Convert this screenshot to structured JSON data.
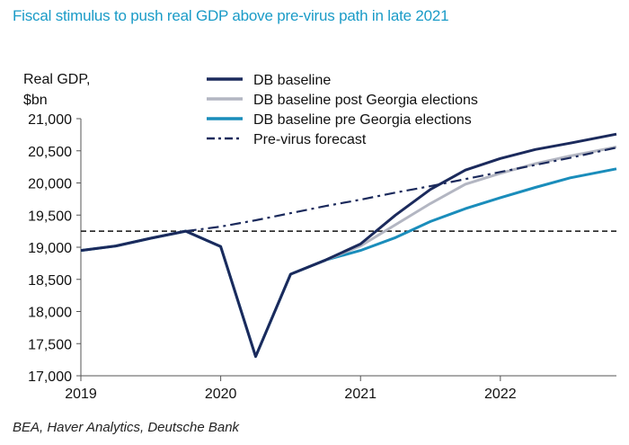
{
  "title": "Fiscal stimulus to push real GDP above pre-virus path in late 2021",
  "source": "BEA, Haver Analytics, Deutsche Bank",
  "chart_data": {
    "type": "line",
    "ylabel_line1": "Real GDP,",
    "ylabel_line2": "$bn",
    "xlim": [
      2019.0,
      2022.83
    ],
    "ylim": [
      17000,
      21000
    ],
    "x_ticks": [
      2019,
      2020,
      2021,
      2022
    ],
    "x_tick_labels": [
      "2019",
      "2020",
      "2021",
      "2022"
    ],
    "y_ticks": [
      17000,
      17500,
      18000,
      18500,
      19000,
      19500,
      20000,
      20500,
      21000
    ],
    "y_tick_labels": [
      "17,000",
      "17,500",
      "18,000",
      "18,500",
      "19,000",
      "19,500",
      "20,000",
      "20,500",
      "21,000"
    ],
    "hline": {
      "y": 19250
    },
    "series": [
      {
        "name": "DB baseline",
        "color": "#1b2a5c",
        "dash": "solid",
        "x": [
          2019.0,
          2019.25,
          2019.5,
          2019.75,
          2020.0,
          2020.25,
          2020.5,
          2020.75,
          2021.0,
          2021.25,
          2021.5,
          2021.75,
          2022.0,
          2022.25,
          2022.5,
          2022.83
        ],
        "y": [
          18950,
          19020,
          19140,
          19250,
          19010,
          17300,
          18580,
          18800,
          19050,
          19500,
          19900,
          20200,
          20380,
          20520,
          20620,
          20760
        ]
      },
      {
        "name": "DB baseline post Georgia elections",
        "color": "#b3b6c2",
        "dash": "solid",
        "x": [
          2020.75,
          2021.0,
          2021.25,
          2021.5,
          2021.75,
          2022.0,
          2022.25,
          2022.5,
          2022.83
        ],
        "y": [
          18800,
          19020,
          19350,
          19680,
          19980,
          20150,
          20300,
          20420,
          20560
        ]
      },
      {
        "name": "DB baseline pre Georgia elections",
        "color": "#1a8dbb",
        "dash": "solid",
        "x": [
          2019.0,
          2019.25,
          2019.5,
          2019.75,
          2020.0,
          2020.25,
          2020.5,
          2020.75,
          2021.0,
          2021.25,
          2021.5,
          2021.75,
          2022.0,
          2022.25,
          2022.5,
          2022.83
        ],
        "y": [
          18950,
          19020,
          19140,
          19250,
          19010,
          17300,
          18580,
          18800,
          18950,
          19150,
          19400,
          19600,
          19770,
          19930,
          20080,
          20220
        ]
      },
      {
        "name": "Pre-virus forecast",
        "color": "#1b2a5c",
        "dash": "dashdot",
        "x": [
          2019.75,
          2020.0,
          2020.25,
          2020.5,
          2020.75,
          2021.0,
          2021.25,
          2021.5,
          2021.75,
          2022.0,
          2022.25,
          2022.5,
          2022.83
        ],
        "y": [
          19250,
          19320,
          19420,
          19530,
          19640,
          19740,
          19850,
          19950,
          20060,
          20170,
          20280,
          20390,
          20550
        ]
      }
    ]
  }
}
